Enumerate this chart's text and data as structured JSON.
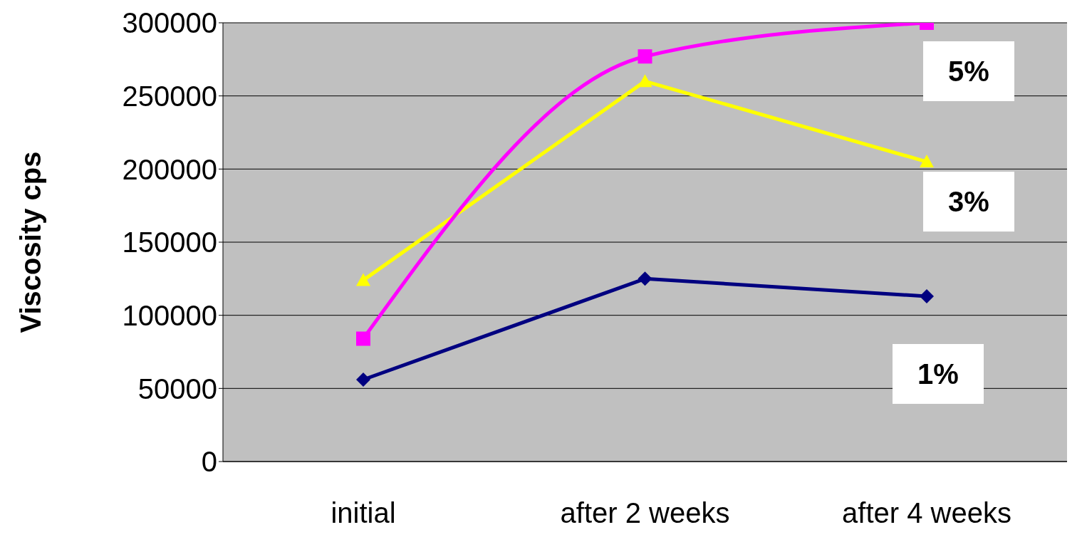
{
  "chart_data": {
    "type": "line",
    "ylabel": "Viscosity cps",
    "categories": [
      "initial",
      "after 2 weeks",
      "after 4 weeks"
    ],
    "series": [
      {
        "name": "1%",
        "color": "#000080",
        "marker": "diamond",
        "values": [
          56000,
          125000,
          113000
        ]
      },
      {
        "name": "3%",
        "color": "#ffff00",
        "marker": "triangle",
        "values": [
          124000,
          260000,
          205000
        ]
      },
      {
        "name": "5%",
        "color": "#ff00ff",
        "marker": "square",
        "values": [
          84000,
          277000,
          300000
        ]
      }
    ],
    "ylim": [
      0,
      300000
    ],
    "yticks": [
      0,
      50000,
      100000,
      150000,
      200000,
      250000,
      300000
    ],
    "grid": "y"
  }
}
